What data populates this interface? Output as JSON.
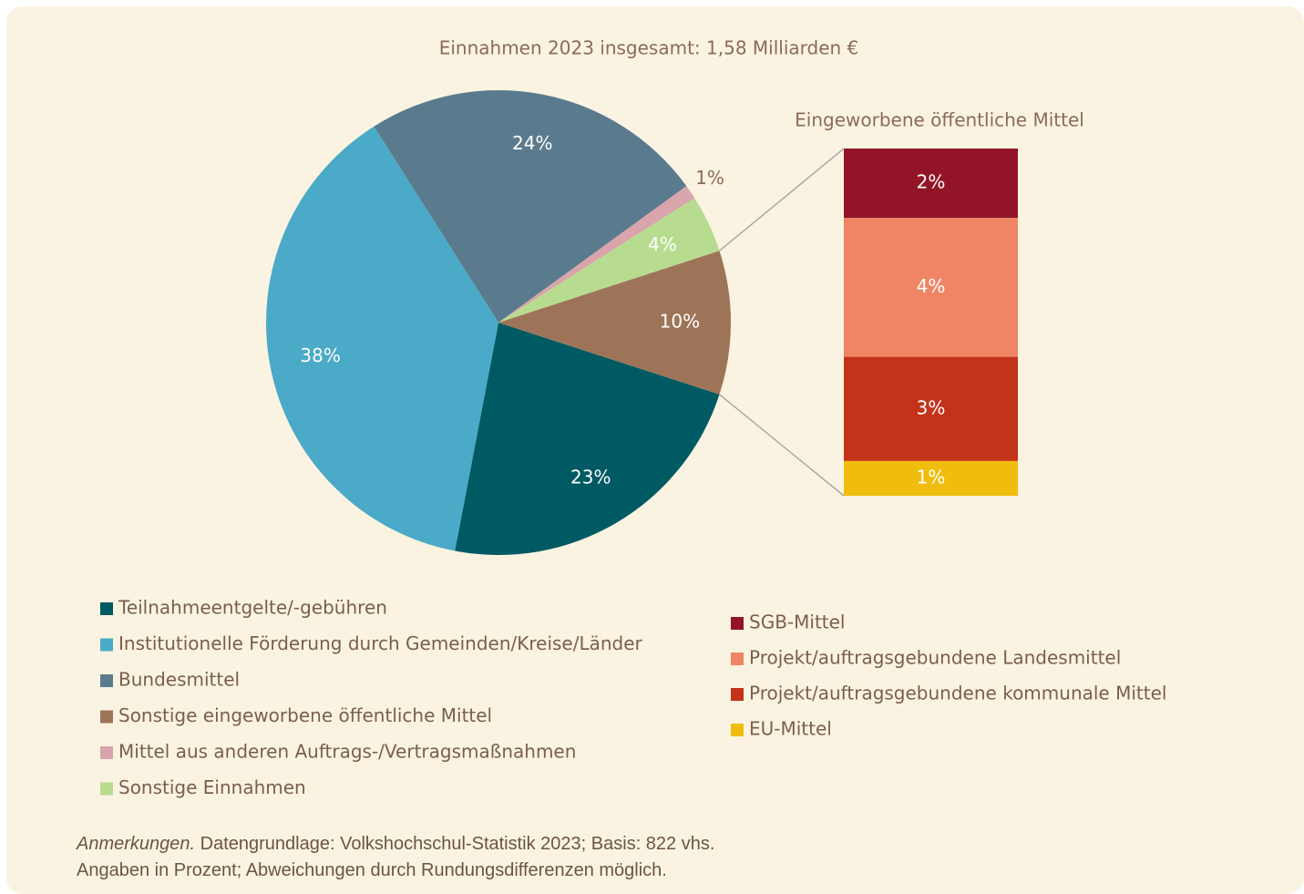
{
  "chart_data": [
    {
      "type": "pie",
      "title": "Einnahmen 2023 insgesamt: 1,58 Milliarden €",
      "categories": [
        "Teilnahmeentgelte/-gebühren",
        "Institutionelle Förderung durch Gemeinden/Kreise/Länder",
        "Bundesmittel",
        "Sonstige eingeworbene öffentliche Mittel",
        "Mittel aus anderen Auftrags-/Vertragsmaßnahmen",
        "Sonstige Einnahmen"
      ],
      "values": [
        23,
        38,
        24,
        10,
        1,
        4
      ],
      "value_labels": [
        "23%",
        "38%",
        "24%",
        "10%",
        "1%",
        "4%"
      ],
      "colors": [
        "#005a63",
        "#4aaac8",
        "#5a7b8e",
        "#9e7459",
        "#d9a4ab",
        "#b7dc8f"
      ]
    },
    {
      "type": "stacked-bar",
      "title": "Eingeworbene öffentliche Mittel",
      "categories": [
        "SGB-Mittel",
        "Projekt/auftragsgebundene Landesmittel",
        "Projekt/auftragsgebundene kommunale Mittel",
        "EU-Mittel"
      ],
      "values": [
        2,
        4,
        3,
        1
      ],
      "value_labels": [
        "2%",
        "4%",
        "3%",
        "1%"
      ],
      "colors": [
        "#921426",
        "#ef8565",
        "#c4321a",
        "#f0bd0f"
      ]
    }
  ],
  "note": {
    "label": "Anmerkungen.",
    "line1": "Datengrundlage: Volkshochschul-Statistik 2023; Basis: 822 vhs.",
    "line2": "Angaben in Prozent; Abweichungen durch Rundungsdifferenzen möglich."
  }
}
